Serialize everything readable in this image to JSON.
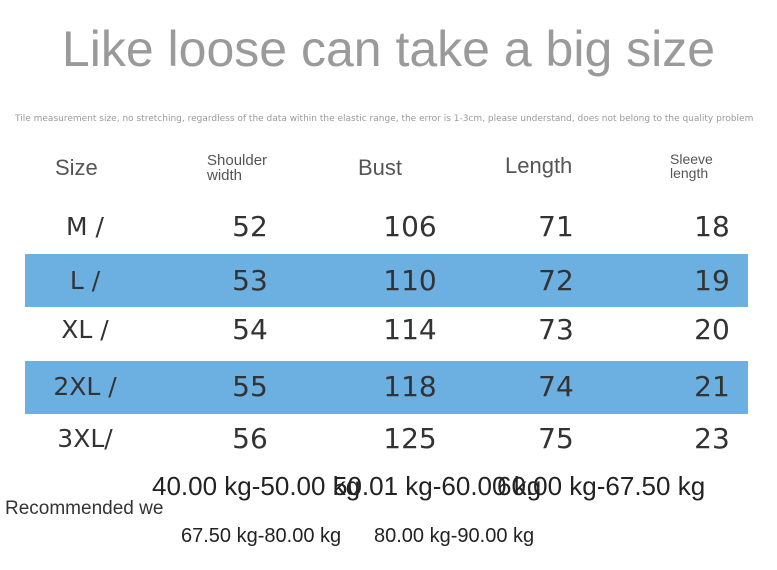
{
  "header": {
    "title": "Like loose can take a big size",
    "note": "Tile measurement size, no stretching, regardless of the data within the elastic range, the error is 1-3cm, please understand, does not belong to the quality problem"
  },
  "table": {
    "columns": [
      "Size",
      "Shoulder width",
      "Bust",
      "Length",
      "Sleeve length"
    ],
    "rows": [
      [
        "M /",
        "52",
        "106",
        "71",
        "18"
      ],
      [
        "L /",
        "53",
        "110",
        "72",
        "19"
      ],
      [
        "XL /",
        "54",
        "114",
        "73",
        "20"
      ],
      [
        "2XL /",
        "55",
        "118",
        "74",
        "21"
      ],
      [
        "3XL/",
        "56",
        "125",
        "75",
        "23"
      ]
    ]
  },
  "recommended": {
    "label": "Recommended we",
    "weights": [
      "40.00 kg-50.00 kg",
      "50.01 kg-60.00 kg",
      "60.00 kg-67.50 kg",
      "67.50 kg-80.00 kg",
      "80.00 kg-90.00 kg"
    ]
  }
}
